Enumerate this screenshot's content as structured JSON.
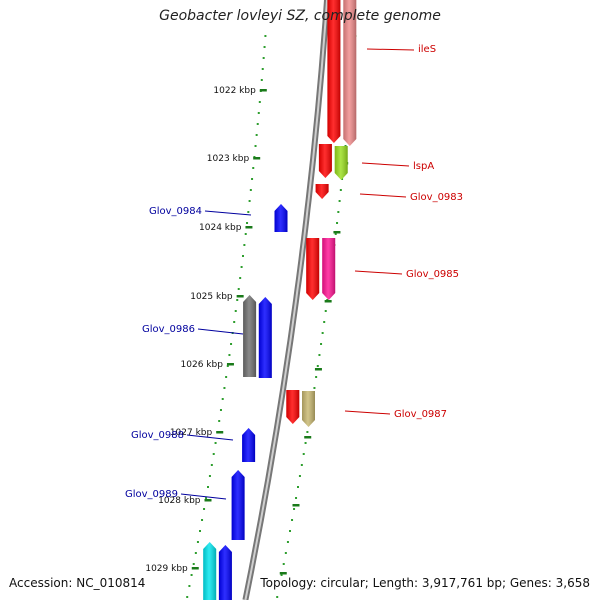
{
  "title": "Geobacter lovleyi SZ, complete genome",
  "accession": "Accession: NC_010814",
  "topology": "Topology: circular; Length: 3,917,761 bp; Genes: 3,658",
  "colors": {
    "backbone": "#888888",
    "tick": "#1a7a1a",
    "dots": "#2e9e2e",
    "forward_label": "#00009e",
    "reverse_label": "#cc0000",
    "kbp_label": "#111111"
  },
  "kbp_ticks": [
    "1022 kbp",
    "1023 kbp",
    "1024 kbp",
    "1025 kbp",
    "1026 kbp",
    "1027 kbp",
    "1028 kbp",
    "1029 kbp"
  ],
  "gene_labels": [
    "ileS",
    "lspA",
    "Glov_0983",
    "Glov_0984",
    "Glov_0985",
    "Glov_0986",
    "Glov_0987",
    "Glov_0988",
    "Glov_0989"
  ],
  "genes": [
    {
      "color": "#ff0000",
      "strand": "reverse",
      "track": "outer",
      "direction": "down"
    },
    {
      "color": "#f08a8a",
      "strand": "reverse",
      "track": "outer2",
      "direction": "down"
    },
    {
      "color": "#ff0000",
      "strand": "reverse",
      "track": "outer",
      "direction": "down"
    },
    {
      "color": "#9adf1e",
      "strand": "reverse",
      "track": "outer2",
      "direction": "down"
    },
    {
      "color": "#ff0000",
      "strand": "reverse",
      "track": "outer",
      "direction": "down"
    },
    {
      "color": "#0000ff",
      "strand": "forward",
      "track": "inner",
      "direction": "up"
    },
    {
      "color": "#ff0000",
      "strand": "reverse",
      "track": "outer",
      "direction": "down"
    },
    {
      "color": "#ff1493",
      "strand": "reverse",
      "track": "outer2",
      "direction": "down"
    },
    {
      "color": "#707070",
      "strand": "forward",
      "track": "inner2",
      "direction": "up"
    },
    {
      "color": "#0000ff",
      "strand": "forward",
      "track": "inner",
      "direction": "up"
    },
    {
      "color": "#ff0000",
      "strand": "reverse",
      "track": "outer",
      "direction": "down"
    },
    {
      "color": "#c8b870",
      "strand": "reverse",
      "track": "outer2",
      "direction": "down"
    },
    {
      "color": "#0000ff",
      "strand": "forward",
      "track": "inner",
      "direction": "up"
    },
    {
      "color": "#0000ff",
      "strand": "forward",
      "track": "inner",
      "direction": "up"
    },
    {
      "color": "#00e5ee",
      "strand": "forward",
      "track": "inner2",
      "direction": "up"
    },
    {
      "color": "#0000ff",
      "strand": "forward",
      "track": "inner",
      "direction": "up"
    }
  ]
}
